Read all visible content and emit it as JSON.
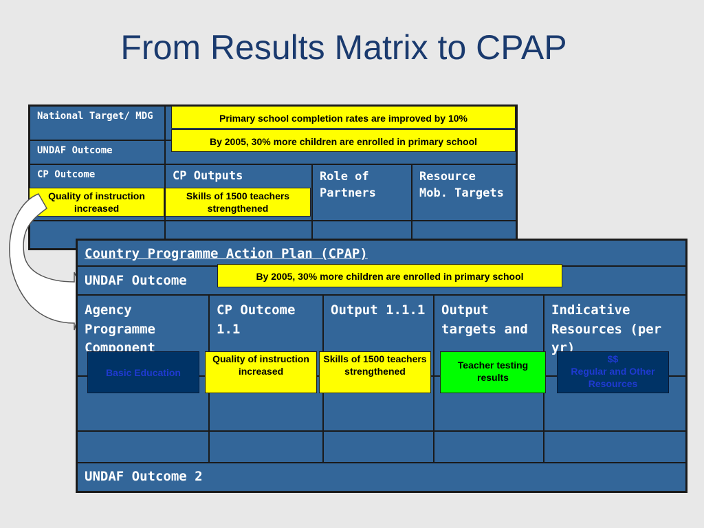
{
  "title": "From Results Matrix to CPAP",
  "results_matrix": {
    "national_target_label": "National Target/ MDG",
    "undaf_outcome_label": "UNDAF Outcome",
    "cp_outcome_label": "CP Outcome",
    "cp_outputs_label": "CP Outputs",
    "role_of_partners_label": "Role of Partners",
    "resource_mob_label": "Resource Mob. Targets",
    "target_text": "Primary school completion rates are improved by 10%",
    "undaf_text": "By 2005, 30% more children are enrolled in primary school",
    "cp_outcome_text": "Quality of instruction increased",
    "cp_output_text": "Skills of 1500 teachers strengthened"
  },
  "cpap": {
    "header": "Country Programme Action Plan (CPAP)",
    "undaf_outcome_label": "UNDAF Outcome",
    "undaf_text": "By 2005, 30% more children are enrolled in primary school",
    "col_agency": "Agency Programme Component",
    "col_cp_outcome": "CP Outcome 1.1",
    "col_output": "Output 1.1.1",
    "col_output_targets": "Output targets and",
    "col_indicative": "Indicative Resources (per yr)",
    "undaf_outcome_2": "UNDAF Outcome 2",
    "agency_box": "Basic Education",
    "cp_outcome_box": "Quality of instruction increased",
    "output_box": "Skills of 1500 teachers strengthened",
    "targets_box": "Teacher testing results",
    "resources_box_line1": "$$",
    "resources_box_line2": "Regular and Other Resources"
  },
  "colors": {
    "table_blue": "#336699",
    "highlight_yellow": "#ffff00",
    "highlight_green": "#00ff00",
    "dark_box": "#003366",
    "title_blue": "#1a3a6e"
  }
}
